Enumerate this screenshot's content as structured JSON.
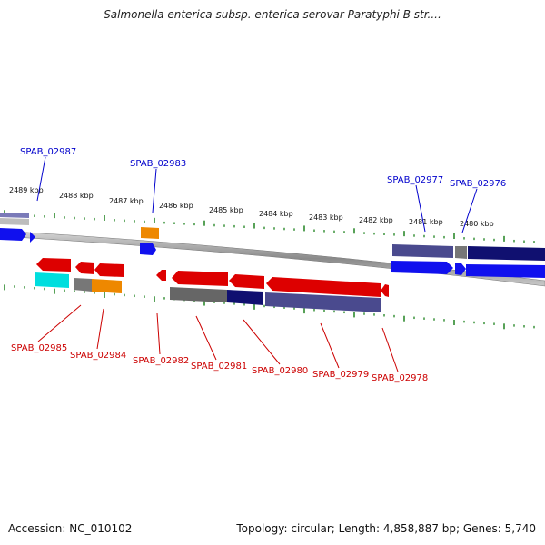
{
  "title": "Salmonella enterica subsp. enterica serovar Paratyphi B str....",
  "footer": {
    "accession": "Accession: NC_010102",
    "summary": "Topology: circular; Length: 4,858,887 bp; Genes: 5,740"
  },
  "colors": {
    "forward_gene": "#1010ee",
    "reverse_gene": "#dd0000",
    "forward_label": "#0000cc",
    "reverse_label": "#cc0000",
    "tick": "#2e8b2e",
    "backbone": "#888888"
  },
  "scale_labels": [
    "2489 kbp",
    "2488 kbp",
    "2487 kbp",
    "2486 kbp",
    "2485 kbp",
    "2484 kbp",
    "2483 kbp",
    "2482 kbp",
    "2481 kbp",
    "2480 kbp"
  ],
  "forward_labels": [
    "SPAB_02987",
    "SPAB_02983",
    "SPAB_02977",
    "SPAB_02976"
  ],
  "reverse_labels": [
    "SPAB_02985",
    "SPAB_02984",
    "SPAB_02982",
    "SPAB_02981",
    "SPAB_02980",
    "SPAB_02979",
    "SPAB_02978"
  ]
}
